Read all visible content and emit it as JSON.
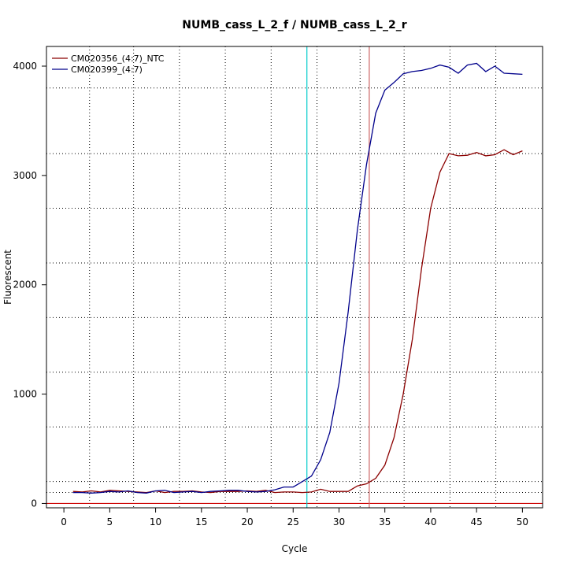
{
  "chart_data": {
    "type": "line",
    "title": "NUMB_cass_L_2_f / NUMB_cass_L_2_r",
    "xlabel": "Cycle",
    "ylabel": "Fluorescent",
    "xlim": [
      -1.9,
      52.2
    ],
    "ylim": [
      -40,
      4180
    ],
    "x_ticks": [
      0,
      5,
      10,
      15,
      20,
      25,
      30,
      35,
      40,
      45,
      50
    ],
    "y_ticks": [
      0,
      1000,
      2000,
      3000,
      4000
    ],
    "x_grid": [
      2.8,
      7.6,
      12.6,
      17.6,
      22.6,
      27.6,
      32.3,
      37.1,
      42.1,
      47.1
    ],
    "y_grid": [
      100,
      200,
      700,
      1200,
      1700,
      2200,
      2700,
      3200,
      3800
    ],
    "grid": true,
    "legend_position": "top-left",
    "threshold": {
      "value": 0,
      "color": "#cc0000"
    },
    "vlines": [
      {
        "x": 26.5,
        "color": "#00cccc"
      },
      {
        "x": 33.3,
        "color": "#cc6666"
      }
    ],
    "x": [
      1,
      2,
      3,
      4,
      5,
      6,
      7,
      8,
      9,
      10,
      11,
      12,
      13,
      14,
      15,
      16,
      17,
      18,
      19,
      20,
      21,
      22,
      23,
      24,
      25,
      26,
      27,
      28,
      29,
      30,
      31,
      32,
      33,
      34,
      35,
      36,
      37,
      38,
      39,
      40,
      41,
      42,
      43,
      44,
      45,
      46,
      47,
      48,
      49,
      50
    ],
    "series": [
      {
        "name": "CM020356_(4:7)_NTC",
        "color": "#8b0000",
        "values": [
          110,
          105,
          115,
          105,
          120,
          115,
          110,
          105,
          100,
          115,
          100,
          110,
          110,
          115,
          105,
          100,
          110,
          110,
          110,
          115,
          110,
          120,
          100,
          105,
          105,
          100,
          105,
          130,
          110,
          110,
          110,
          160,
          180,
          230,
          350,
          600,
          1000,
          1500,
          2150,
          2700,
          3030,
          3200,
          3180,
          3185,
          3210,
          3180,
          3190,
          3235,
          3190,
          3225
        ]
      },
      {
        "name": "CM020399_(4:7)",
        "color": "#00008b",
        "values": [
          100,
          100,
          95,
          100,
          110,
          105,
          115,
          100,
          95,
          115,
          120,
          100,
          105,
          110,
          100,
          110,
          115,
          120,
          120,
          110,
          105,
          110,
          125,
          150,
          150,
          200,
          250,
          400,
          650,
          1100,
          1750,
          2500,
          3100,
          3570,
          3780,
          3850,
          3930,
          3950,
          3960,
          3980,
          4010,
          3990,
          3935,
          4010,
          4025,
          3950,
          4000,
          3935,
          3930,
          3925
        ]
      }
    ]
  }
}
